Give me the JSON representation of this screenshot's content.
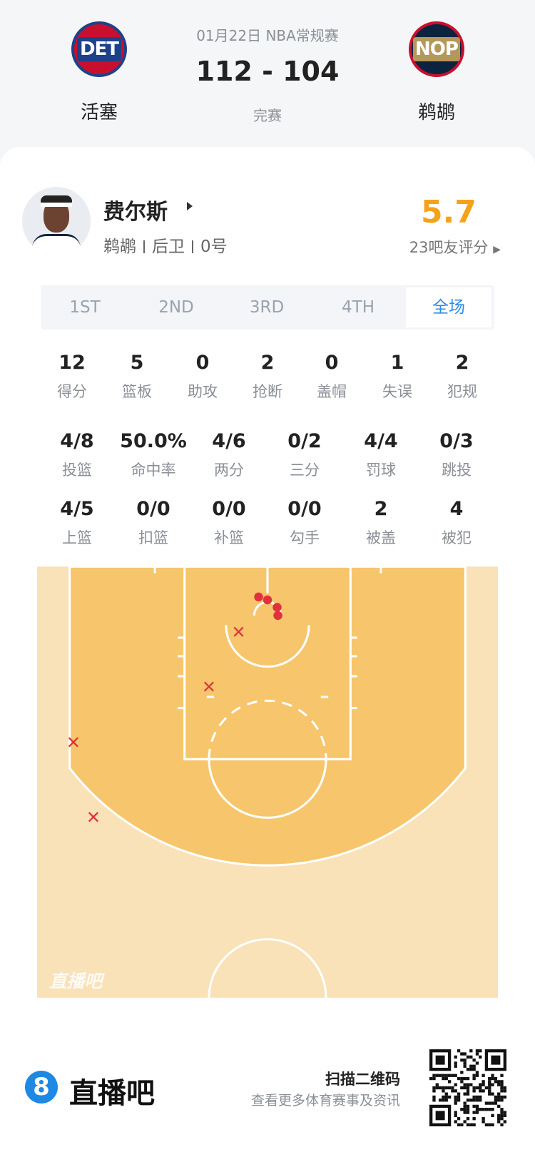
{
  "header": {
    "date": "01月22日 NBA常规赛",
    "score": "112 - 104",
    "status": "完赛",
    "home": {
      "logo": "DET",
      "name": "活塞"
    },
    "away": {
      "logo": "NOP",
      "name": "鹈鹕"
    }
  },
  "player": {
    "name": "费尔斯",
    "team": "鹈鹕",
    "position": "后卫",
    "number": "0号",
    "rating": "5.7",
    "rating_label": "23吧友评分"
  },
  "tabs": [
    "1ST",
    "2ND",
    "3RD",
    "4TH",
    "全场"
  ],
  "stats": [
    [
      {
        "value": "12",
        "label": "得分"
      },
      {
        "value": "5",
        "label": "篮板"
      },
      {
        "value": "0",
        "label": "助攻"
      },
      {
        "value": "2",
        "label": "抢断"
      },
      {
        "value": "0",
        "label": "盖帽"
      },
      {
        "value": "1",
        "label": "失误"
      },
      {
        "value": "2",
        "label": "犯规"
      }
    ],
    [
      {
        "value": "4/8",
        "label": "投篮"
      },
      {
        "value": "50.0%",
        "label": "命中率"
      },
      {
        "value": "4/6",
        "label": "两分"
      },
      {
        "value": "0/2",
        "label": "三分"
      },
      {
        "value": "4/4",
        "label": "罚球"
      },
      {
        "value": "0/3",
        "label": "跳投"
      }
    ],
    [
      {
        "value": "4/5",
        "label": "上篮"
      },
      {
        "value": "0/0",
        "label": "扣篮"
      },
      {
        "value": "0/0",
        "label": "补篮"
      },
      {
        "value": "0/0",
        "label": "勾手"
      },
      {
        "value": "2",
        "label": "被盖"
      },
      {
        "value": "4",
        "label": "被犯"
      }
    ]
  ],
  "court": {
    "watermark": "直播吧"
  },
  "footer": {
    "logo": "8",
    "brand": "直播吧",
    "scan": "扫描二维码",
    "subtitle": "查看更多体育赛事及资讯"
  }
}
